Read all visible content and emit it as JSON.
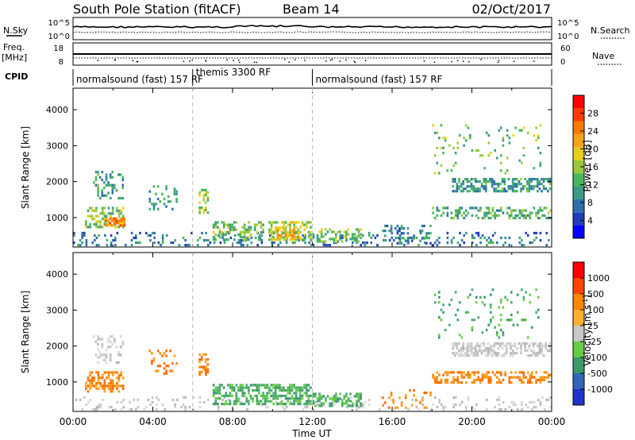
{
  "header": {
    "station": "South Pole Station (fitACF)",
    "beam": "Beam 14",
    "date": "02/Oct/2017"
  },
  "noise_panel": {
    "left_label": "N.Sky",
    "right_label": "N.Search",
    "left_ticks": [
      "10^5",
      "10^0"
    ],
    "right_ticks": [
      "10^5",
      "10^0"
    ]
  },
  "freq_panel": {
    "left_label_1": "Freq.",
    "left_label_2": "[MHz]",
    "left_ticks": [
      "18",
      "8"
    ],
    "right_label": "Nave",
    "right_ticks": [
      "60",
      "0"
    ]
  },
  "cpid": {
    "label": "CPID",
    "segments": [
      {
        "start": 0,
        "end": 6,
        "name": "normalsound (fast) 157 RF"
      },
      {
        "start": 6,
        "end": 12,
        "name": "themis 3300 RF"
      },
      {
        "start": 12,
        "end": 24,
        "name": "normalsound (fast) 157 RF"
      }
    ]
  },
  "chart_data": [
    {
      "type": "heatmap",
      "name": "power",
      "ylabel": "Slant Range [km]",
      "ylim": [
        180,
        4600
      ],
      "yticks": [
        "1000",
        "2000",
        "3000",
        "4000"
      ],
      "xlim": [
        0,
        24
      ],
      "colorbar": {
        "label": "Power [dB]",
        "range": [
          0,
          32
        ],
        "ticks": [
          "4",
          "8",
          "12",
          "16",
          "20",
          "24",
          "28"
        ],
        "colors": [
          "#0000ff",
          "#1f3fb8",
          "#2e6fae",
          "#3a9a86",
          "#46b65a",
          "#9cc93a",
          "#e8d01a",
          "#f4a21a",
          "#ff7a00",
          "#ff3a00",
          "#ff0000"
        ]
      },
      "echo_regions": [
        {
          "t0": 0.0,
          "t1": 24.0,
          "r0": 200,
          "r1": 600,
          "density": 0.16,
          "value": 8
        },
        {
          "t0": 0.6,
          "t1": 2.6,
          "r0": 700,
          "r1": 1300,
          "density": 0.5,
          "value": 14
        },
        {
          "t0": 1.6,
          "t1": 2.6,
          "r0": 750,
          "r1": 1000,
          "density": 0.7,
          "value": 24
        },
        {
          "t0": 1.0,
          "t1": 2.6,
          "r0": 1500,
          "r1": 2300,
          "density": 0.3,
          "value": 10
        },
        {
          "t0": 3.8,
          "t1": 5.2,
          "r0": 1200,
          "r1": 1900,
          "density": 0.25,
          "value": 10
        },
        {
          "t0": 6.3,
          "t1": 6.8,
          "r0": 1100,
          "r1": 1800,
          "density": 0.5,
          "value": 16
        },
        {
          "t0": 7.0,
          "t1": 9.6,
          "r0": 350,
          "r1": 900,
          "density": 0.45,
          "value": 14
        },
        {
          "t0": 9.8,
          "t1": 12.0,
          "r0": 350,
          "r1": 900,
          "density": 0.55,
          "value": 16
        },
        {
          "t0": 10.2,
          "t1": 11.4,
          "r0": 400,
          "r1": 750,
          "density": 0.6,
          "value": 22
        },
        {
          "t0": 12.0,
          "t1": 14.5,
          "r0": 300,
          "r1": 700,
          "density": 0.4,
          "value": 14
        },
        {
          "t0": 15.5,
          "t1": 18.0,
          "r0": 250,
          "r1": 800,
          "density": 0.2,
          "value": 8
        },
        {
          "t0": 18.0,
          "t1": 24.0,
          "r0": 950,
          "r1": 1300,
          "density": 0.4,
          "value": 12
        },
        {
          "t0": 19.0,
          "t1": 24.0,
          "r0": 1700,
          "r1": 2100,
          "density": 0.55,
          "value": 10
        },
        {
          "t0": 18.0,
          "t1": 23.5,
          "r0": 2200,
          "r1": 3600,
          "density": 0.08,
          "value": 14
        }
      ]
    },
    {
      "type": "heatmap",
      "name": "velocity",
      "ylabel": "Slant Range [km]",
      "ylim": [
        180,
        4600
      ],
      "yticks": [
        "1000",
        "2000",
        "3000",
        "4000"
      ],
      "xlim": [
        0,
        24
      ],
      "xticks": [
        "00:00",
        "04:00",
        "08:00",
        "12:00",
        "16:00",
        "20:00",
        "00:00"
      ],
      "xlabel": "Time UT",
      "colorbar": {
        "label": "Velocity [m s^-1]",
        "ticks": [
          "1000",
          "500",
          "100",
          "25",
          "-25",
          "-100",
          "-500",
          "-1000"
        ],
        "colors": [
          "#2233cc",
          "#3366bb",
          "#3a9a6a",
          "#66cc44",
          "#c8c8c8",
          "#ffb030",
          "#ff8800",
          "#ff4400",
          "#ff0000"
        ]
      },
      "echo_regions": [
        {
          "t0": 0.0,
          "t1": 24.0,
          "r0": 200,
          "r1": 600,
          "density": 0.14,
          "value": "gray"
        },
        {
          "t0": 0.6,
          "t1": 2.6,
          "r0": 700,
          "r1": 1300,
          "density": 0.5,
          "value": "orange"
        },
        {
          "t0": 1.0,
          "t1": 2.6,
          "r0": 1500,
          "r1": 2300,
          "density": 0.3,
          "value": "gray"
        },
        {
          "t0": 3.8,
          "t1": 5.2,
          "r0": 1200,
          "r1": 1900,
          "density": 0.25,
          "value": "orange"
        },
        {
          "t0": 6.3,
          "t1": 6.8,
          "r0": 1100,
          "r1": 1800,
          "density": 0.5,
          "value": "orange"
        },
        {
          "t0": 7.0,
          "t1": 12.0,
          "r0": 350,
          "r1": 950,
          "density": 0.55,
          "value": "green"
        },
        {
          "t0": 12.0,
          "t1": 14.5,
          "r0": 300,
          "r1": 700,
          "density": 0.4,
          "value": "green"
        },
        {
          "t0": 15.5,
          "t1": 18.0,
          "r0": 250,
          "r1": 800,
          "density": 0.2,
          "value": "orange"
        },
        {
          "t0": 18.0,
          "t1": 24.0,
          "r0": 950,
          "r1": 1300,
          "density": 0.45,
          "value": "orange"
        },
        {
          "t0": 19.0,
          "t1": 24.0,
          "r0": 1700,
          "r1": 2100,
          "density": 0.6,
          "value": "gray"
        },
        {
          "t0": 18.0,
          "t1": 23.5,
          "r0": 2200,
          "r1": 3600,
          "density": 0.08,
          "value": "green"
        }
      ]
    }
  ]
}
